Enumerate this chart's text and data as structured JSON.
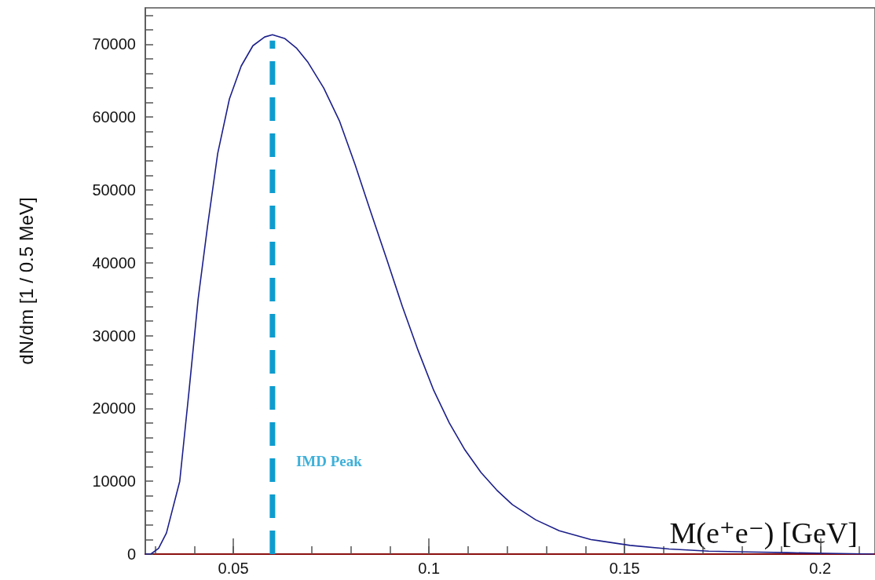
{
  "chart_data": {
    "type": "line",
    "xlabel": "M(e⁺e⁻) [GeV]",
    "ylabel": "dN/dm [1 / 0.5 MeV]",
    "x": [
      0.0275,
      0.0289,
      0.0309,
      0.0329,
      0.0363,
      0.0386,
      0.041,
      0.0434,
      0.046,
      0.049,
      0.052,
      0.055,
      0.058,
      0.06,
      0.0631,
      0.0661,
      0.0691,
      0.0731,
      0.0771,
      0.0811,
      0.0851,
      0.0892,
      0.0932,
      0.0972,
      0.1012,
      0.1052,
      0.1092,
      0.1133,
      0.1173,
      0.1213,
      0.1273,
      0.1333,
      0.1414,
      0.1514,
      0.1614,
      0.1715,
      0.1815,
      0.1916,
      0.2016,
      0.2137
    ],
    "series": [
      {
        "color": "#1c1f8a",
        "values": [
          0,
          0,
          800,
          2900,
          10000,
          22000,
          35000,
          45000,
          55000,
          62500,
          67000,
          69800,
          71000,
          71300,
          70800,
          69500,
          67500,
          64000,
          59500,
          53500,
          47000,
          40500,
          34000,
          28000,
          22500,
          18000,
          14300,
          11200,
          8800,
          6800,
          4700,
          3200,
          2000,
          1200,
          700,
          400,
          300,
          200,
          100,
          0
        ]
      }
    ],
    "xlim": [
      0.0275,
      0.214
    ],
    "xticks": [
      {
        "value": 0.03,
        "label": null
      },
      {
        "value": 0.04,
        "label": null
      },
      0.05,
      {
        "value": 0.06,
        "label": null
      },
      {
        "value": 0.07,
        "label": null
      },
      {
        "value": 0.08,
        "label": null
      },
      {
        "value": 0.09,
        "label": null
      },
      0.1,
      {
        "value": 0.11,
        "label": null
      },
      {
        "value": 0.12,
        "label": null
      },
      {
        "value": 0.13,
        "label": null
      },
      {
        "value": 0.14,
        "label": null
      },
      0.15,
      {
        "value": 0.16,
        "label": null
      },
      {
        "value": 0.17,
        "label": null
      },
      {
        "value": 0.18,
        "label": null
      },
      {
        "value": 0.19,
        "label": null
      },
      0.2,
      {
        "value": 0.21,
        "label": null
      }
    ],
    "ylim": [
      0,
      75000
    ],
    "yticks": [
      0,
      {
        "value": 2000,
        "label": null
      },
      {
        "value": 4000,
        "label": null
      },
      {
        "value": 6000,
        "label": null
      },
      {
        "value": 8000,
        "label": null
      },
      10000,
      {
        "value": 12000,
        "label": null
      },
      {
        "value": 14000,
        "label": null
      },
      {
        "value": 16000,
        "label": null
      },
      {
        "value": 18000,
        "label": null
      },
      20000,
      {
        "value": 22000,
        "label": null
      },
      {
        "value": 24000,
        "label": null
      },
      {
        "value": 26000,
        "label": null
      },
      {
        "value": 28000,
        "label": null
      },
      30000,
      {
        "value": 32000,
        "label": null
      },
      {
        "value": 34000,
        "label": null
      },
      {
        "value": 36000,
        "label": null
      },
      {
        "value": 38000,
        "label": null
      },
      40000,
      {
        "value": 42000,
        "label": null
      },
      {
        "value": 44000,
        "label": null
      },
      {
        "value": 46000,
        "label": null
      },
      {
        "value": 48000,
        "label": null
      },
      50000,
      {
        "value": 52000,
        "label": null
      },
      {
        "value": 54000,
        "label": null
      },
      {
        "value": 56000,
        "label": null
      },
      {
        "value": 58000,
        "label": null
      },
      60000,
      {
        "value": 62000,
        "label": null
      },
      {
        "value": 64000,
        "label": null
      },
      {
        "value": 66000,
        "label": null
      },
      {
        "value": 68000,
        "label": null
      },
      70000,
      {
        "value": 72000,
        "label": null
      },
      {
        "value": 74000,
        "label": null
      }
    ],
    "ref_lines": [
      {
        "axis": "x",
        "value": 0.06,
        "label": "IMD Peak",
        "color": "#0e9ccf",
        "line_style": "dashed"
      }
    ],
    "grid": false,
    "marker": "none",
    "line_style": "solid"
  }
}
